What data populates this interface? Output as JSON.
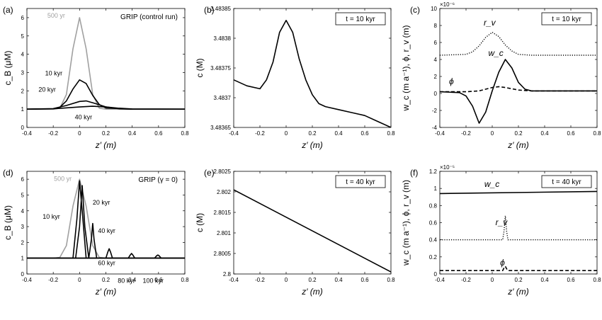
{
  "figure": {
    "panels": [
      {
        "label": "(a)",
        "title": "GRIP (control run)",
        "title_gamma": "",
        "inset": "",
        "xlabel": "z′ (m)",
        "ylabel": "c_B (μM)",
        "xlim": [
          -0.4,
          0.8
        ],
        "ylim": [
          0,
          6.5
        ],
        "xticks": [
          -0.4,
          -0.2,
          0,
          0.2,
          0.4,
          0.6,
          0.8
        ],
        "yticks": [
          0,
          1,
          2,
          3,
          4,
          5,
          6
        ],
        "ytick_labels": [
          "0",
          "1",
          "2",
          "3",
          "4",
          "5",
          "6"
        ],
        "annotations": [
          "500 yr",
          "10 kyr",
          "20 kyr",
          "40 kyr"
        ]
      },
      {
        "label": "(b)",
        "title": "",
        "inset": "t = 10 kyr",
        "xlabel": "z′ (m)",
        "ylabel": "c (M)",
        "xlim": [
          -0.4,
          0.8
        ],
        "ylim": [
          3.48365,
          3.48385
        ],
        "xticks": [
          -0.4,
          -0.2,
          0,
          0.2,
          0.4,
          0.6,
          0.8
        ],
        "yticks": [
          3.48365,
          3.4837,
          3.48375,
          3.4838,
          3.48385
        ],
        "ytick_labels": [
          "3.48365",
          "3.4837",
          "3.48375",
          "3.4838",
          "3.48385"
        ],
        "annotations": []
      },
      {
        "label": "(c)",
        "title": "",
        "inset": "t = 10 kyr",
        "xlabel": "z′ (m)",
        "ylabel": "w_c (m a⁻¹), ϕ, r_v (m)",
        "exponent": "×10⁻⁶",
        "xlim": [
          -0.4,
          0.8
        ],
        "ylim": [
          -4,
          10
        ],
        "xticks": [
          -0.4,
          -0.2,
          0,
          0.2,
          0.4,
          0.6,
          0.8
        ],
        "yticks": [
          -4,
          -2,
          0,
          2,
          4,
          6,
          8,
          10
        ],
        "ytick_labels": [
          "-4",
          "-2",
          "0",
          "2",
          "4",
          "6",
          "8",
          "10"
        ],
        "annotations": [
          "r_v",
          "w_c",
          "ϕ"
        ]
      },
      {
        "label": "(d)",
        "title": "GRIP (γ = 0)",
        "inset": "",
        "xlabel": "z′ (m)",
        "ylabel": "c_B (μM)",
        "xlim": [
          -0.4,
          0.8
        ],
        "ylim": [
          0,
          6.5
        ],
        "xticks": [
          -0.4,
          -0.2,
          0,
          0.2,
          0.4,
          0.6,
          0.8
        ],
        "yticks": [
          0,
          1,
          2,
          3,
          4,
          5,
          6
        ],
        "ytick_labels": [
          "0",
          "1",
          "2",
          "3",
          "4",
          "5",
          "6"
        ],
        "annotations": [
          "500 yr",
          "20 kyr",
          "10 kyr",
          "40 kyr",
          "60 kyr",
          "80 kyr",
          "100 kyr"
        ]
      },
      {
        "label": "(e)",
        "title": "",
        "inset": "t = 40 kyr",
        "xlabel": "z′ (m)",
        "ylabel": "c (M)",
        "xlim": [
          -0.4,
          0.8
        ],
        "ylim": [
          2.8,
          2.8025
        ],
        "xticks": [
          -0.4,
          -0.2,
          0,
          0.2,
          0.4,
          0.6,
          0.8
        ],
        "yticks": [
          2.8,
          2.8005,
          2.801,
          2.8015,
          2.802,
          2.8025
        ],
        "ytick_labels": [
          "2.8",
          "2.8005",
          "2.801",
          "2.8015",
          "2.802",
          "2.8025"
        ],
        "annotations": []
      },
      {
        "label": "(f)",
        "title": "",
        "inset": "t = 40 kyr",
        "xlabel": "z′ (m)",
        "ylabel": "w_c (m a⁻¹), ϕ, r_v (m)",
        "exponent": "×10⁻⁵",
        "xlim": [
          -0.4,
          0.8
        ],
        "ylim": [
          0,
          1.2
        ],
        "xticks": [
          -0.4,
          -0.2,
          0,
          0.2,
          0.4,
          0.6,
          0.8
        ],
        "yticks": [
          0,
          0.2,
          0.4,
          0.6,
          0.8,
          1,
          1.2
        ],
        "ytick_labels": [
          "0",
          "0.2",
          "0.4",
          "0.6",
          "0.8",
          "1",
          "1.2"
        ],
        "annotations": [
          "w_c",
          "r_v",
          "ϕ"
        ]
      }
    ]
  },
  "chart_data": [
    {
      "type": "line",
      "panel": "(a)",
      "series": [
        {
          "name": "500 yr",
          "color": "#a0a0a0",
          "x": [
            -0.4,
            -0.2,
            -0.15,
            -0.1,
            -0.05,
            0,
            0.05,
            0.1,
            0.15,
            0.2,
            0.4,
            0.8
          ],
          "y": [
            1,
            1,
            1.05,
            1.8,
            4.3,
            6.0,
            4.3,
            1.8,
            1.05,
            1,
            1,
            1
          ]
        },
        {
          "name": "10 kyr",
          "color": "#000000",
          "x": [
            -0.4,
            -0.2,
            -0.15,
            -0.1,
            -0.05,
            0,
            0.05,
            0.1,
            0.15,
            0.2,
            0.4,
            0.8
          ],
          "y": [
            1,
            1.02,
            1.1,
            1.45,
            2.1,
            2.6,
            2.4,
            1.75,
            1.25,
            1.06,
            1,
            1
          ]
        },
        {
          "name": "20 kyr",
          "color": "#000000",
          "x": [
            -0.4,
            -0.2,
            -0.1,
            0,
            0.05,
            0.1,
            0.2,
            0.3,
            0.4,
            0.8
          ],
          "y": [
            1,
            1.03,
            1.2,
            1.42,
            1.45,
            1.35,
            1.12,
            1.02,
            1,
            1
          ]
        },
        {
          "name": "40 kyr",
          "color": "#000000",
          "x": [
            -0.4,
            -0.2,
            0,
            0.1,
            0.2,
            0.3,
            0.4,
            0.8
          ],
          "y": [
            1,
            1.02,
            1.12,
            1.16,
            1.12,
            1.05,
            1.01,
            1
          ]
        }
      ]
    },
    {
      "type": "line",
      "panel": "(b)",
      "series": [
        {
          "name": "c",
          "color": "#000000",
          "x": [
            -0.4,
            -0.3,
            -0.2,
            -0.15,
            -0.1,
            -0.05,
            0,
            0.05,
            0.1,
            0.15,
            0.2,
            0.25,
            0.3,
            0.4,
            0.5,
            0.6,
            0.7,
            0.8
          ],
          "y": [
            3.48373,
            3.48372,
            3.483715,
            3.48373,
            3.48376,
            3.48381,
            3.48383,
            3.48381,
            3.483765,
            3.48373,
            3.483705,
            3.48369,
            3.483685,
            3.48368,
            3.483675,
            3.48367,
            3.48366,
            3.48365
          ]
        }
      ]
    },
    {
      "type": "line",
      "panel": "(c)",
      "series": [
        {
          "name": "r_v",
          "color": "#000000",
          "dash": "dotted",
          "x": [
            -0.4,
            -0.2,
            -0.15,
            -0.1,
            -0.05,
            0,
            0.05,
            0.1,
            0.15,
            0.2,
            0.3,
            0.8
          ],
          "y": [
            4.5,
            4.6,
            4.9,
            5.6,
            6.6,
            7.2,
            6.7,
            5.7,
            5.0,
            4.6,
            4.5,
            4.5
          ]
        },
        {
          "name": "w_c",
          "color": "#000000",
          "x": [
            -0.4,
            -0.25,
            -0.2,
            -0.15,
            -0.1,
            -0.05,
            0,
            0.05,
            0.1,
            0.15,
            0.2,
            0.25,
            0.3,
            0.4,
            0.8
          ],
          "y": [
            0.2,
            0.1,
            -0.3,
            -1.5,
            -3.5,
            -2.2,
            0.3,
            2.5,
            4.0,
            3.0,
            1.3,
            0.5,
            0.3,
            0.3,
            0.3
          ]
        },
        {
          "name": "ϕ",
          "color": "#000000",
          "dash": "dashed",
          "x": [
            -0.4,
            -0.2,
            -0.1,
            0,
            0.05,
            0.1,
            0.2,
            0.3,
            0.8
          ],
          "y": [
            0.2,
            0.2,
            0.3,
            0.7,
            0.8,
            0.7,
            0.4,
            0.3,
            0.3
          ]
        }
      ]
    },
    {
      "type": "line",
      "panel": "(d)",
      "series": [
        {
          "name": "500 yr",
          "color": "#a0a0a0",
          "x": [
            -0.4,
            -0.2,
            -0.15,
            -0.1,
            -0.05,
            0,
            0.05,
            0.1,
            0.15,
            0.2,
            0.4,
            0.8
          ],
          "y": [
            1,
            1,
            1.05,
            1.8,
            4.3,
            6.0,
            4.3,
            1.8,
            1.05,
            1,
            1,
            1
          ]
        },
        {
          "name": "10 kyr",
          "color": "#000000",
          "x": [
            -0.4,
            -0.05,
            -0.02,
            0,
            0.02,
            0.05,
            0.8
          ],
          "y": [
            1,
            1,
            3.5,
            5.9,
            4.0,
            1,
            1
          ]
        },
        {
          "name": "20 kyr",
          "color": "#000000",
          "x": [
            -0.4,
            -0.03,
            0,
            0.02,
            0.04,
            0.07,
            0.8
          ],
          "y": [
            1,
            1,
            3.0,
            5.6,
            3.0,
            1,
            1
          ]
        },
        {
          "name": "40 kyr",
          "color": "#000000",
          "x": [
            -0.4,
            0.07,
            0.09,
            0.1,
            0.11,
            0.13,
            0.8
          ],
          "y": [
            1,
            1,
            2.2,
            3.2,
            2.2,
            1,
            1
          ]
        },
        {
          "name": "60 kyr",
          "color": "#000000",
          "x": [
            -0.4,
            0.2,
            0.215,
            0.225,
            0.235,
            0.25,
            0.8
          ],
          "y": [
            1,
            1,
            1.4,
            1.6,
            1.4,
            1,
            1
          ]
        },
        {
          "name": "80 kyr",
          "color": "#000000",
          "x": [
            -0.4,
            0.37,
            0.385,
            0.395,
            0.405,
            0.42,
            0.8
          ],
          "y": [
            1,
            1,
            1.2,
            1.3,
            1.2,
            1,
            1
          ]
        },
        {
          "name": "100 kyr",
          "color": "#000000",
          "x": [
            -0.4,
            0.57,
            0.585,
            0.595,
            0.605,
            0.62,
            0.8
          ],
          "y": [
            1,
            1,
            1.15,
            1.2,
            1.15,
            1,
            1
          ]
        }
      ]
    },
    {
      "type": "line",
      "panel": "(e)",
      "series": [
        {
          "name": "c",
          "color": "#000000",
          "x": [
            -0.4,
            0.8
          ],
          "y": [
            2.80205,
            2.80005
          ]
        }
      ]
    },
    {
      "type": "line",
      "panel": "(f)",
      "series": [
        {
          "name": "w_c",
          "color": "#000000",
          "x": [
            -0.4,
            0.8
          ],
          "y": [
            0.94,
            0.965
          ]
        },
        {
          "name": "r_v",
          "color": "#000000",
          "dash": "dotted",
          "x": [
            -0.4,
            0.08,
            0.09,
            0.1,
            0.11,
            0.12,
            0.8
          ],
          "y": [
            0.4,
            0.4,
            0.5,
            0.68,
            0.5,
            0.4,
            0.4
          ]
        },
        {
          "name": "ϕ",
          "color": "#000000",
          "dash": "dashed",
          "x": [
            -0.4,
            0.08,
            0.09,
            0.1,
            0.11,
            0.12,
            0.8
          ],
          "y": [
            0.04,
            0.04,
            0.07,
            0.09,
            0.06,
            0.04,
            0.04
          ]
        }
      ]
    }
  ]
}
